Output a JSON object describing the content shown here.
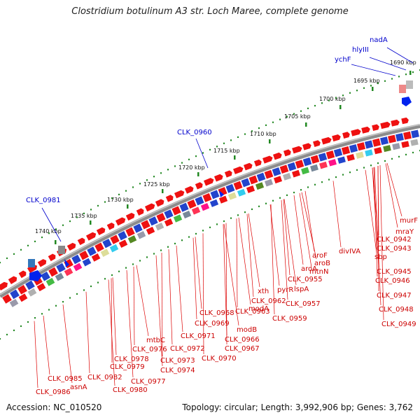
{
  "header": {
    "title": "Clostridium botulinum A3 str. Loch Maree, complete genome"
  },
  "footer": {
    "accession": "Accession: NC_010520",
    "topology": "Topology: circular; Length: 3,992,906 bp; Genes: 3,762"
  },
  "colors": {
    "forward_arrow": "#ee1111",
    "leader_red": "#dd0000",
    "leader_blue": "#0000cc",
    "tick": "#228822",
    "backbone": "#8a8a8a"
  },
  "kbp_ticks": [
    "1690 kbp",
    "1695 kbp",
    "1700 kbp",
    "1705 kbp",
    "1710 kbp",
    "1715 kbp",
    "1720 kbp",
    "1725 kbp",
    "1730 kbp",
    "1735 kbp",
    "1740 kbp"
  ],
  "outer_labels": [
    "nadA",
    "hlyIII",
    "ychF",
    "CLK_0960",
    "CLK_0981"
  ],
  "inner_labels": [
    "murF",
    "mraY",
    "CLK_0942",
    "CLK_0943",
    "divIVA",
    "sbp",
    "CLK_0945",
    "CLK_0946",
    "CLK_0947",
    "CLK_0948",
    "CLK_0949",
    "aroF",
    "aroB",
    "mtnN",
    "aroA",
    "CLK_0955",
    "lspA",
    "pyrR",
    "CLK_0957",
    "CLK_0959",
    "xth",
    "CLK_0962",
    "modA",
    "CLK_0963",
    "modB",
    "CLK_0966",
    "CLK_0967",
    "CLK_0968",
    "CLK_0969",
    "CLK_0970",
    "CLK_0971",
    "CLK_0972",
    "CLK_0973",
    "CLK_0974",
    "mtbC",
    "CLK_0976",
    "CLK_0977",
    "CLK_0978",
    "CLK_0979",
    "CLK_0980",
    "CLK_0982",
    "asnA",
    "CLK_0985",
    "CLK_0986"
  ]
}
